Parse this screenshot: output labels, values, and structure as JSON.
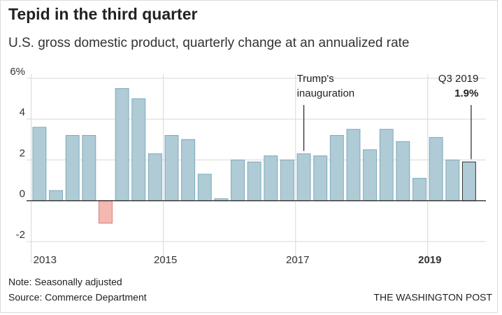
{
  "chart_data": {
    "type": "bar",
    "title": "Tepid in the third quarter",
    "subtitle": "U.S. gross domestic product, quarterly change at an annualized rate",
    "note": "Note: Seasonally adjusted",
    "source": "Source: Commerce Department",
    "credit": "THE WASHINGTON POST",
    "x": [
      2013.125,
      2013.375,
      2013.625,
      2013.875,
      2014.125,
      2014.375,
      2014.625,
      2014.875,
      2015.125,
      2015.375,
      2015.625,
      2015.875,
      2016.125,
      2016.375,
      2016.625,
      2016.875,
      2017.125,
      2017.375,
      2017.625,
      2017.875,
      2018.125,
      2018.375,
      2018.625,
      2018.875,
      2019.125,
      2019.375,
      2019.625
    ],
    "values": [
      3.6,
      0.5,
      3.2,
      3.2,
      -1.1,
      5.5,
      5.0,
      2.3,
      3.2,
      3.0,
      1.3,
      0.1,
      2.0,
      1.9,
      2.2,
      2.0,
      2.3,
      2.2,
      3.2,
      3.5,
      2.5,
      3.5,
      2.9,
      1.1,
      3.1,
      2.0,
      1.9
    ],
    "color": "#aecbd6",
    "edge_color": "#7fa9ba",
    "negative_color": "#f4b8b1",
    "negative_edge_color": "#d77b70",
    "highlight_edge_color": "#333333",
    "xlim": [
      2012.93,
      2019.88
    ],
    "xticks": [
      2013,
      2015,
      2017,
      2019
    ],
    "ylim": [
      -2.1,
      6.2
    ],
    "yticks": [
      {
        "value": 6,
        "label": "6%"
      },
      4,
      2,
      0,
      -2
    ],
    "grid": true,
    "annotations": [
      {
        "lines": [
          "Trump's",
          "inauguration"
        ],
        "x": 2017.125
      },
      {
        "lines": [
          "Q3 2019",
          "1.9%"
        ],
        "x": 2019.625
      }
    ]
  }
}
